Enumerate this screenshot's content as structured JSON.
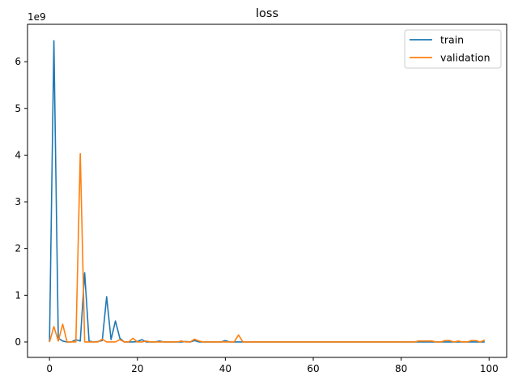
{
  "chart_data": {
    "type": "line",
    "title": "loss",
    "xlabel": "",
    "ylabel": "",
    "y_offset_label": "1e9",
    "xlim": [
      -5,
      104
    ],
    "ylim": [
      -0.33,
      6.8
    ],
    "x_ticks": [
      0,
      20,
      40,
      60,
      80,
      100
    ],
    "x_tick_labels": [
      "0",
      "20",
      "40",
      "60",
      "80",
      "100"
    ],
    "y_ticks": [
      0,
      1,
      2,
      3,
      4,
      5,
      6
    ],
    "y_tick_labels": [
      "0",
      "1",
      "2",
      "3",
      "4",
      "5",
      "6"
    ],
    "grid": false,
    "legend_position": "top-right",
    "series": [
      {
        "name": "train",
        "color": "#1f77b4",
        "x": [
          0,
          1,
          2,
          3,
          4,
          5,
          6,
          7,
          8,
          9,
          10,
          11,
          12,
          13,
          14,
          15,
          16,
          17,
          18,
          19,
          20,
          21,
          22,
          23,
          24,
          25,
          26,
          27,
          28,
          29,
          30,
          31,
          32,
          33,
          34,
          35,
          36,
          37,
          38,
          39,
          40,
          41,
          42,
          43,
          44,
          45,
          46,
          47,
          48,
          49,
          50,
          51,
          52,
          53,
          54,
          55,
          56,
          57,
          58,
          59,
          60,
          61,
          62,
          63,
          64,
          65,
          66,
          67,
          68,
          69,
          70,
          71,
          72,
          73,
          74,
          75,
          76,
          77,
          78,
          79,
          80,
          81,
          82,
          83,
          84,
          85,
          86,
          87,
          88,
          89,
          90,
          91,
          92,
          93,
          94,
          95,
          96,
          97,
          98,
          99
        ],
        "values": [
          0.0,
          6.45,
          0.08,
          0.02,
          0.0,
          0.0,
          0.05,
          0.02,
          1.48,
          0.02,
          0.0,
          0.01,
          0.03,
          0.97,
          0.05,
          0.45,
          0.08,
          0.0,
          0.0,
          0.0,
          0.01,
          0.05,
          0.0,
          0.0,
          0.0,
          0.02,
          0.0,
          0.0,
          0.0,
          0.0,
          0.0,
          0.01,
          0.0,
          0.03,
          0.0,
          0.0,
          0.0,
          0.0,
          0.0,
          0.0,
          0.03,
          0.0,
          0.0,
          0.0,
          0.0,
          0.0,
          0.0,
          0.0,
          0.0,
          0.0,
          0.0,
          0.0,
          0.0,
          0.0,
          0.0,
          0.0,
          0.0,
          0.0,
          0.0,
          0.0,
          0.0,
          0.0,
          0.0,
          0.0,
          0.0,
          0.0,
          0.0,
          0.0,
          0.0,
          0.0,
          0.0,
          0.0,
          0.0,
          0.0,
          0.0,
          0.0,
          0.0,
          0.0,
          0.0,
          0.0,
          0.0,
          0.0,
          0.0,
          0.0,
          0.0,
          0.0,
          0.0,
          0.0,
          0.0,
          0.0,
          0.0,
          0.0,
          0.0,
          0.0,
          0.0,
          0.0,
          0.0,
          0.0,
          0.0,
          0.0
        ]
      },
      {
        "name": "validation",
        "color": "#ff7f0e",
        "x": [
          0,
          1,
          2,
          3,
          4,
          5,
          6,
          7,
          8,
          9,
          10,
          11,
          12,
          13,
          14,
          15,
          16,
          17,
          18,
          19,
          20,
          21,
          22,
          23,
          24,
          25,
          26,
          27,
          28,
          29,
          30,
          31,
          32,
          33,
          34,
          35,
          36,
          37,
          38,
          39,
          40,
          41,
          42,
          43,
          44,
          45,
          46,
          47,
          48,
          49,
          50,
          51,
          52,
          53,
          54,
          55,
          56,
          57,
          58,
          59,
          60,
          61,
          62,
          63,
          64,
          65,
          66,
          67,
          68,
          69,
          70,
          71,
          72,
          73,
          74,
          75,
          76,
          77,
          78,
          79,
          80,
          81,
          82,
          83,
          84,
          85,
          86,
          87,
          88,
          89,
          90,
          91,
          92,
          93,
          94,
          95,
          96,
          97,
          98,
          99
        ],
        "values": [
          0.0,
          0.33,
          0.02,
          0.38,
          0.0,
          0.0,
          0.0,
          4.03,
          0.0,
          0.0,
          0.0,
          0.0,
          0.06,
          0.0,
          0.0,
          0.0,
          0.05,
          0.0,
          0.0,
          0.08,
          0.0,
          0.0,
          0.02,
          0.0,
          0.0,
          0.0,
          0.0,
          0.0,
          0.0,
          0.0,
          0.02,
          0.0,
          0.0,
          0.06,
          0.02,
          0.0,
          0.0,
          0.0,
          0.0,
          0.0,
          0.0,
          0.0,
          0.0,
          0.15,
          0.0,
          0.0,
          0.0,
          0.0,
          0.0,
          0.0,
          0.0,
          0.0,
          0.0,
          0.0,
          0.0,
          0.0,
          0.0,
          0.0,
          0.0,
          0.0,
          0.0,
          0.0,
          0.0,
          0.0,
          0.0,
          0.0,
          0.0,
          0.0,
          0.0,
          0.0,
          0.0,
          0.0,
          0.0,
          0.0,
          0.0,
          0.0,
          0.0,
          0.0,
          0.0,
          0.0,
          0.0,
          0.0,
          0.0,
          0.0,
          0.02,
          0.02,
          0.02,
          0.02,
          0.0,
          0.0,
          0.03,
          0.03,
          0.0,
          0.02,
          0.0,
          0.0,
          0.03,
          0.03,
          0.0,
          0.04
        ]
      }
    ]
  }
}
